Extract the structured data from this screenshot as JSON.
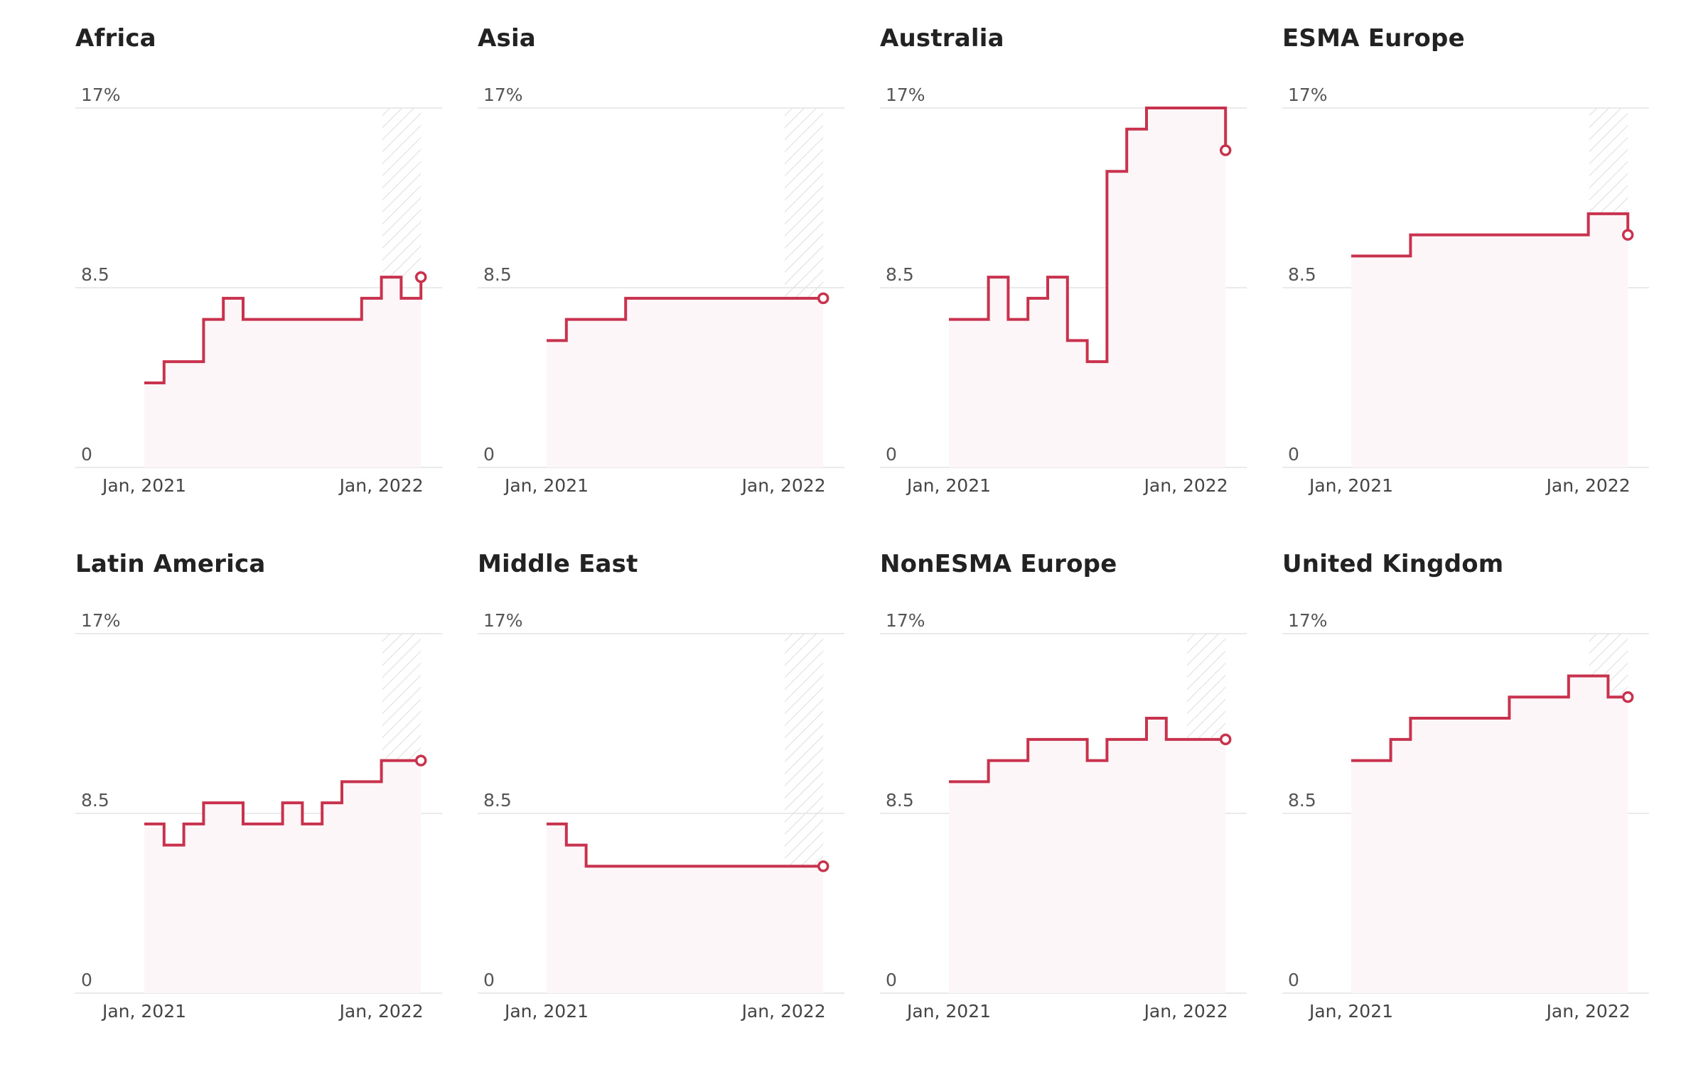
{
  "panels_meta": {
    "y_ticks": [
      "17%",
      "8.5",
      "0"
    ],
    "x_ticks": [
      "Jan, 2021",
      "Jan, 2022"
    ]
  },
  "colors": {
    "line": "#c8324d",
    "fill": "#fdf6f8",
    "grid": "#e3e3e3",
    "hatch": "#dddddd"
  },
  "chart_data": [
    {
      "type": "line",
      "step": true,
      "title": "Africa",
      "ylim": [
        0,
        17
      ],
      "y_ticks": [
        "17%",
        "8.5",
        "0"
      ],
      "x_ticks": [
        "Jan, 2021",
        "Jan, 2022"
      ],
      "x": [
        "2021-01",
        "2021-02",
        "2021-03",
        "2021-04",
        "2021-05",
        "2021-06",
        "2021-07",
        "2021-08",
        "2021-09",
        "2021-10",
        "2021-11",
        "2021-12",
        "2022-01",
        "2022-02",
        "2022-03"
      ],
      "values": [
        4,
        5,
        5,
        7,
        8,
        7,
        7,
        7,
        7,
        7,
        7,
        8,
        9,
        8,
        9
      ]
    },
    {
      "type": "line",
      "step": true,
      "title": "Asia",
      "ylim": [
        0,
        17
      ],
      "y_ticks": [
        "17%",
        "8.5",
        "0"
      ],
      "x_ticks": [
        "Jan, 2021",
        "Jan, 2022"
      ],
      "x": [
        "2021-01",
        "2021-02",
        "2021-03",
        "2021-04",
        "2021-05",
        "2021-06",
        "2021-07",
        "2021-08",
        "2021-09",
        "2021-10",
        "2021-11",
        "2021-12",
        "2022-01",
        "2022-02",
        "2022-03"
      ],
      "values": [
        6,
        7,
        7,
        7,
        8,
        8,
        8,
        8,
        8,
        8,
        8,
        8,
        8,
        8,
        8
      ]
    },
    {
      "type": "line",
      "step": true,
      "title": "Australia",
      "ylim": [
        0,
        17
      ],
      "y_ticks": [
        "17%",
        "8.5",
        "0"
      ],
      "x_ticks": [
        "Jan, 2021",
        "Jan, 2022"
      ],
      "x": [
        "2021-01",
        "2021-02",
        "2021-03",
        "2021-04",
        "2021-05",
        "2021-06",
        "2021-07",
        "2021-08",
        "2021-09",
        "2021-10",
        "2021-11",
        "2021-12",
        "2022-01",
        "2022-02",
        "2022-03"
      ],
      "values": [
        7,
        7,
        9,
        7,
        8,
        9,
        6,
        5,
        14,
        16,
        17,
        17,
        17,
        17,
        15
      ]
    },
    {
      "type": "line",
      "step": true,
      "title": "ESMA Europe",
      "ylim": [
        0,
        17
      ],
      "y_ticks": [
        "17%",
        "8.5",
        "0"
      ],
      "x_ticks": [
        "Jan, 2021",
        "Jan, 2022"
      ],
      "x": [
        "2021-01",
        "2021-02",
        "2021-03",
        "2021-04",
        "2021-05",
        "2021-06",
        "2021-07",
        "2021-08",
        "2021-09",
        "2021-10",
        "2021-11",
        "2021-12",
        "2022-01",
        "2022-02",
        "2022-03"
      ],
      "values": [
        10,
        10,
        10,
        11,
        11,
        11,
        11,
        11,
        11,
        11,
        11,
        11,
        12,
        12,
        11
      ]
    },
    {
      "type": "line",
      "step": true,
      "title": "Latin America",
      "ylim": [
        0,
        17
      ],
      "y_ticks": [
        "17%",
        "8.5",
        "0"
      ],
      "x_ticks": [
        "Jan, 2021",
        "Jan, 2022"
      ],
      "x": [
        "2021-01",
        "2021-02",
        "2021-03",
        "2021-04",
        "2021-05",
        "2021-06",
        "2021-07",
        "2021-08",
        "2021-09",
        "2021-10",
        "2021-11",
        "2021-12",
        "2022-01",
        "2022-02",
        "2022-03"
      ],
      "values": [
        8,
        7,
        8,
        9,
        9,
        8,
        8,
        9,
        8,
        9,
        10,
        10,
        11,
        11,
        11
      ]
    },
    {
      "type": "line",
      "step": true,
      "title": "Middle East",
      "ylim": [
        0,
        17
      ],
      "y_ticks": [
        "17%",
        "8.5",
        "0"
      ],
      "x_ticks": [
        "Jan, 2021",
        "Jan, 2022"
      ],
      "x": [
        "2021-01",
        "2021-02",
        "2021-03",
        "2021-04",
        "2021-05",
        "2021-06",
        "2021-07",
        "2021-08",
        "2021-09",
        "2021-10",
        "2021-11",
        "2021-12",
        "2022-01",
        "2022-02",
        "2022-03"
      ],
      "values": [
        8,
        7,
        6,
        6,
        6,
        6,
        6,
        6,
        6,
        6,
        6,
        6,
        6,
        6,
        6
      ]
    },
    {
      "type": "line",
      "step": true,
      "title": "NonESMA Europe",
      "ylim": [
        0,
        17
      ],
      "y_ticks": [
        "17%",
        "8.5",
        "0"
      ],
      "x_ticks": [
        "Jan, 2021",
        "Jan, 2022"
      ],
      "x": [
        "2021-01",
        "2021-02",
        "2021-03",
        "2021-04",
        "2021-05",
        "2021-06",
        "2021-07",
        "2021-08",
        "2021-09",
        "2021-10",
        "2021-11",
        "2021-12",
        "2022-01",
        "2022-02",
        "2022-03"
      ],
      "values": [
        10,
        10,
        11,
        11,
        12,
        12,
        12,
        11,
        12,
        12,
        13,
        12,
        12,
        12,
        12
      ]
    },
    {
      "type": "line",
      "step": true,
      "title": "United Kingdom",
      "ylim": [
        0,
        17
      ],
      "y_ticks": [
        "17%",
        "8.5",
        "0"
      ],
      "x_ticks": [
        "Jan, 2021",
        "Jan, 2022"
      ],
      "x": [
        "2021-01",
        "2021-02",
        "2021-03",
        "2021-04",
        "2021-05",
        "2021-06",
        "2021-07",
        "2021-08",
        "2021-09",
        "2021-10",
        "2021-11",
        "2021-12",
        "2022-01",
        "2022-02",
        "2022-03"
      ],
      "values": [
        11,
        11,
        12,
        13,
        13,
        13,
        13,
        13,
        14,
        14,
        14,
        15,
        15,
        14,
        14
      ]
    }
  ]
}
